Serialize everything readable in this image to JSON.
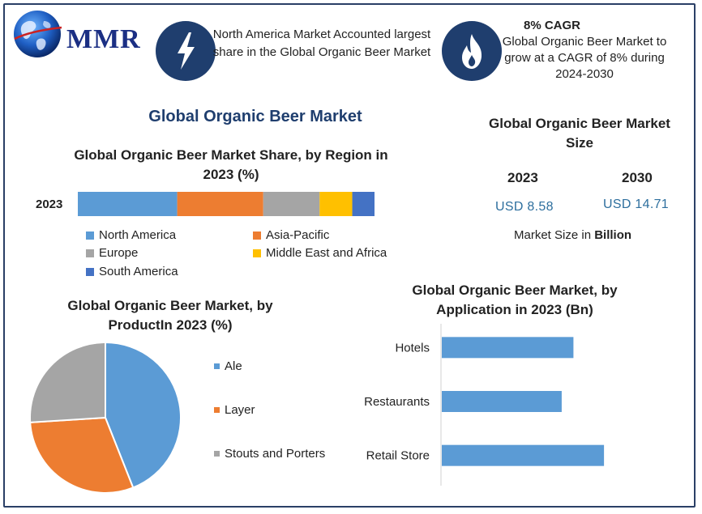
{
  "brand": {
    "logo_text": "MMR"
  },
  "highlights": [
    {
      "icon": "lightning-bolt-icon",
      "text": "North America Market Accounted largest share in the Global Organic Beer Market"
    },
    {
      "icon": "flame-icon",
      "heading": "8% CAGR",
      "text": "Global Organic Beer Market to grow at a CAGR of 8% during 2024-2030"
    }
  ],
  "main_title": "Global Organic Beer Market",
  "colors": {
    "north_america": "#5b9bd5",
    "asia_pacific": "#ed7d31",
    "europe": "#a5a5a5",
    "mea": "#ffc000",
    "south_america": "#4472c4",
    "navy": "#1f3e6e"
  },
  "market_size": {
    "title": "Global Organic Beer Market Size",
    "years": [
      "2023",
      "2030"
    ],
    "values": [
      "USD 8.58",
      "USD 14.71"
    ],
    "note_prefix": "Market Size in ",
    "note_bold": "Billion"
  },
  "chart_data": [
    {
      "type": "bar",
      "orientation": "horizontal-stacked",
      "title": "Global Organic Beer Market Share, by Region in 2023 (%)",
      "categories": [
        "2023"
      ],
      "series": [
        {
          "name": "North America",
          "values": [
            33.5
          ],
          "color": "#5b9bd5"
        },
        {
          "name": "Asia-Pacific",
          "values": [
            29
          ],
          "color": "#ed7d31"
        },
        {
          "name": "Europe",
          "values": [
            19
          ],
          "color": "#a5a5a5"
        },
        {
          "name": "Middle East and Africa",
          "values": [
            11
          ],
          "color": "#ffc000"
        },
        {
          "name": "South America",
          "values": [
            7.5
          ],
          "color": "#4472c4"
        }
      ],
      "legend": "bottom"
    },
    {
      "type": "pie",
      "title": "Global Organic Beer Market, by ProductIn 2023 (%)",
      "labels": [
        "Ale",
        "Layer",
        "Stouts and Porters"
      ],
      "values": [
        44,
        30,
        26
      ],
      "colors": [
        "#5b9bd5",
        "#ed7d31",
        "#a5a5a5"
      ],
      "legend": "right"
    },
    {
      "type": "bar",
      "orientation": "horizontal",
      "title": "Global Organic Beer Market, by Application in 2023 (Bn)",
      "categories": [
        "Hotels",
        "Restaurants",
        "Retail Store"
      ],
      "values": [
        2.8,
        2.55,
        3.45
      ],
      "xlim": [
        0,
        5
      ],
      "color": "#5b9bd5"
    }
  ]
}
